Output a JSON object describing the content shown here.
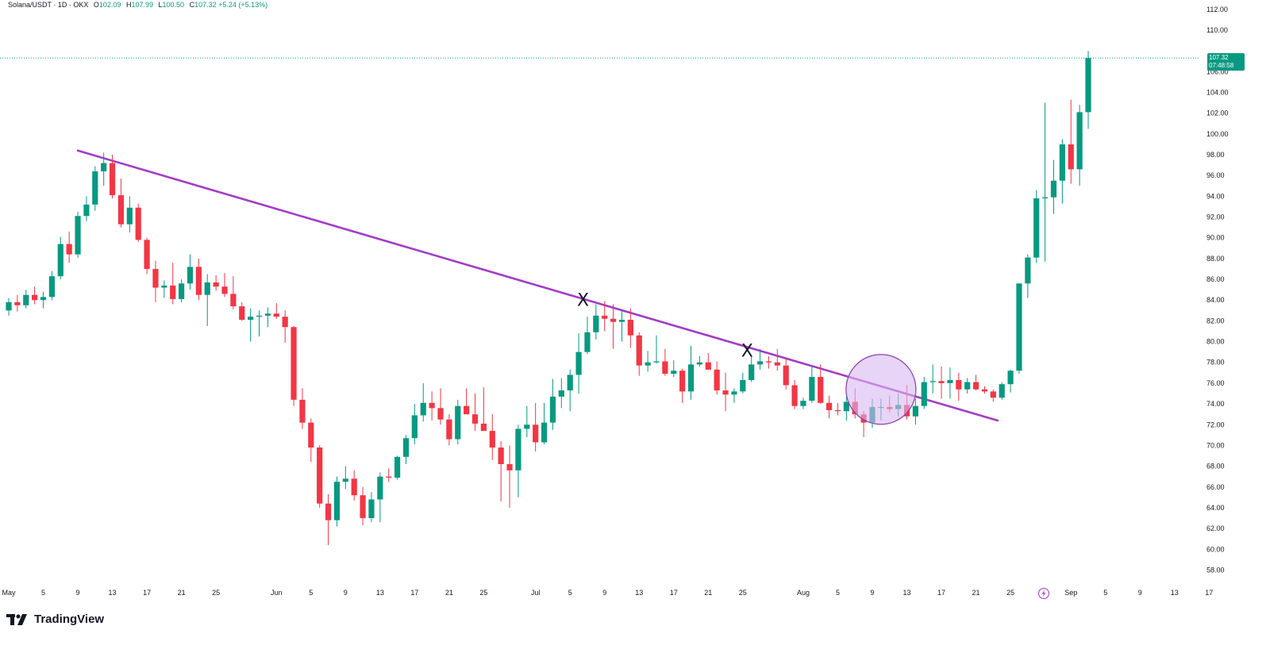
{
  "legend": {
    "title": "Solana/USDT · 1D · OKX",
    "open_label": "O",
    "open": "102.09",
    "high_label": "H",
    "high": "107.99",
    "low_label": "L",
    "low": "100.50",
    "close_label": "C",
    "close": "107.32",
    "change": "+5.24 (+5.13%)"
  },
  "price_tag": {
    "price": "107.32",
    "countdown": "07:48:58"
  },
  "brand": {
    "name": "TradingView"
  },
  "colors": {
    "up": "#089981",
    "down": "#f23645",
    "trendline": "#a23cc6",
    "circle_fill": "#d9b8f0",
    "circle_stroke": "#8e44ad"
  },
  "markers": {
    "mark1": "X",
    "mark2": "X"
  },
  "chart_data": {
    "type": "candlestick",
    "symbol": "Solana/USDT",
    "interval": "1D",
    "exchange": "OKX",
    "ylim": [
      57,
      113
    ],
    "y_ticks": [
      "58.00",
      "60.00",
      "62.00",
      "64.00",
      "66.00",
      "68.00",
      "70.00",
      "72.00",
      "74.00",
      "76.00",
      "78.00",
      "80.00",
      "82.00",
      "84.00",
      "86.00",
      "88.00",
      "90.00",
      "92.00",
      "94.00",
      "96.00",
      "98.00",
      "100.00",
      "102.00",
      "104.00",
      "106.00",
      "110.00",
      "112.00"
    ],
    "x_ticks": [
      {
        "label": "May",
        "day": 1
      },
      {
        "label": "5",
        "day": 5
      },
      {
        "label": "9",
        "day": 9
      },
      {
        "label": "13",
        "day": 13
      },
      {
        "label": "17",
        "day": 17
      },
      {
        "label": "21",
        "day": 21
      },
      {
        "label": "25",
        "day": 25
      },
      {
        "label": "Jun",
        "day": 32
      },
      {
        "label": "5",
        "day": 36
      },
      {
        "label": "9",
        "day": 40
      },
      {
        "label": "13",
        "day": 44
      },
      {
        "label": "17",
        "day": 48
      },
      {
        "label": "21",
        "day": 52
      },
      {
        "label": "25",
        "day": 56
      },
      {
        "label": "Jul",
        "day": 62
      },
      {
        "label": "5",
        "day": 66
      },
      {
        "label": "9",
        "day": 70
      },
      {
        "label": "13",
        "day": 74
      },
      {
        "label": "17",
        "day": 78
      },
      {
        "label": "21",
        "day": 82
      },
      {
        "label": "25",
        "day": 86
      },
      {
        "label": "Aug",
        "day": 93
      },
      {
        "label": "5",
        "day": 97
      },
      {
        "label": "9",
        "day": 101
      },
      {
        "label": "13",
        "day": 105
      },
      {
        "label": "17",
        "day": 109
      },
      {
        "label": "21",
        "day": 113
      },
      {
        "label": "25",
        "day": 117
      },
      {
        "label": "Sep",
        "day": 124
      },
      {
        "label": "5",
        "day": 128
      },
      {
        "label": "9",
        "day": 132
      },
      {
        "label": "13",
        "day": 136
      },
      {
        "label": "17",
        "day": 140
      }
    ],
    "candles_ohlc": [
      [
        83.0,
        84.2,
        82.5,
        83.8
      ],
      [
        83.8,
        84.5,
        82.9,
        83.5
      ],
      [
        83.5,
        85.0,
        83.2,
        84.5
      ],
      [
        84.5,
        85.3,
        83.6,
        84.0
      ],
      [
        84.0,
        84.8,
        83.2,
        84.3
      ],
      [
        84.3,
        86.8,
        84.0,
        86.3
      ],
      [
        86.3,
        90.1,
        86.0,
        89.4
      ],
      [
        89.4,
        90.6,
        87.6,
        88.4
      ],
      [
        88.4,
        92.5,
        88.1,
        92.1
      ],
      [
        92.1,
        94.0,
        91.6,
        93.2
      ],
      [
        93.2,
        96.9,
        92.6,
        96.4
      ],
      [
        96.4,
        98.2,
        95.0,
        97.2
      ],
      [
        97.2,
        98.0,
        93.8,
        94.1
      ],
      [
        94.1,
        95.7,
        91.0,
        91.3
      ],
      [
        91.3,
        94.0,
        90.5,
        92.9
      ],
      [
        92.9,
        93.3,
        89.6,
        89.8
      ],
      [
        89.8,
        90.0,
        86.5,
        87.0
      ],
      [
        87.0,
        87.8,
        83.8,
        85.2
      ],
      [
        85.2,
        85.9,
        84.2,
        85.4
      ],
      [
        85.4,
        87.6,
        83.6,
        84.1
      ],
      [
        84.1,
        86.0,
        83.8,
        85.6
      ],
      [
        85.6,
        88.4,
        85.0,
        87.2
      ],
      [
        87.2,
        88.0,
        84.0,
        84.5
      ],
      [
        84.5,
        86.5,
        81.5,
        85.7
      ],
      [
        85.7,
        86.4,
        84.9,
        85.3
      ],
      [
        85.3,
        86.6,
        84.3,
        84.6
      ],
      [
        84.6,
        86.3,
        83.1,
        83.4
      ],
      [
        83.4,
        83.8,
        82.0,
        82.1
      ],
      [
        82.1,
        83.2,
        80.0,
        82.4
      ],
      [
        82.4,
        83.0,
        80.5,
        82.5
      ],
      [
        82.5,
        83.3,
        81.4,
        82.7
      ],
      [
        82.7,
        83.7,
        82.2,
        82.4
      ],
      [
        82.4,
        83.0,
        79.9,
        81.4
      ],
      [
        81.4,
        81.5,
        73.8,
        74.4
      ],
      [
        74.4,
        75.5,
        71.6,
        72.2
      ],
      [
        72.2,
        72.6,
        68.4,
        69.8
      ],
      [
        69.8,
        70.0,
        64.0,
        64.4
      ],
      [
        64.4,
        65.3,
        60.4,
        62.8
      ],
      [
        62.8,
        67.0,
        62.2,
        66.5
      ],
      [
        66.5,
        68.0,
        65.8,
        66.8
      ],
      [
        66.8,
        67.6,
        64.7,
        65.2
      ],
      [
        65.2,
        66.0,
        62.3,
        63.0
      ],
      [
        63.0,
        65.5,
        62.6,
        64.8
      ],
      [
        64.8,
        67.4,
        62.6,
        67.0
      ],
      [
        67.0,
        67.8,
        66.5,
        66.9
      ],
      [
        66.9,
        69.0,
        66.7,
        68.9
      ],
      [
        68.9,
        71.0,
        68.2,
        70.7
      ],
      [
        70.7,
        74.0,
        70.1,
        72.9
      ],
      [
        72.9,
        76.0,
        72.3,
        74.1
      ],
      [
        74.1,
        75.2,
        72.4,
        73.6
      ],
      [
        73.6,
        75.5,
        72.0,
        72.5
      ],
      [
        72.5,
        73.0,
        70.0,
        70.6
      ],
      [
        70.6,
        74.4,
        70.1,
        73.8
      ],
      [
        73.8,
        75.5,
        73.0,
        73.0
      ],
      [
        73.0,
        75.0,
        71.4,
        72.1
      ],
      [
        72.1,
        75.6,
        71.6,
        71.4
      ],
      [
        71.4,
        73.0,
        68.6,
        69.8
      ],
      [
        69.8,
        70.4,
        64.6,
        68.2
      ],
      [
        68.2,
        70.0,
        64.0,
        67.6
      ],
      [
        67.6,
        72.0,
        65.0,
        71.6
      ],
      [
        71.6,
        73.8,
        70.8,
        72.0
      ],
      [
        72.0,
        74.1,
        69.4,
        70.3
      ],
      [
        70.3,
        74.1,
        70.1,
        72.2
      ],
      [
        72.2,
        76.4,
        71.5,
        74.7
      ],
      [
        74.7,
        76.5,
        73.6,
        75.3
      ],
      [
        75.3,
        77.3,
        73.3,
        76.8
      ],
      [
        76.8,
        80.8,
        75.0,
        79.0
      ],
      [
        79.0,
        82.4,
        78.8,
        80.9
      ],
      [
        80.9,
        83.6,
        80.2,
        82.5
      ],
      [
        82.5,
        83.9,
        81.0,
        82.2
      ],
      [
        82.2,
        83.6,
        79.3,
        81.9
      ],
      [
        81.9,
        83.0,
        80.0,
        82.1
      ],
      [
        82.1,
        83.2,
        79.4,
        80.6
      ],
      [
        80.6,
        80.9,
        76.7,
        77.7
      ],
      [
        77.7,
        79.1,
        77.1,
        78.0
      ],
      [
        78.0,
        80.6,
        77.9,
        78.1
      ],
      [
        78.1,
        79.3,
        76.7,
        76.9
      ],
      [
        76.9,
        78.2,
        76.6,
        77.2
      ],
      [
        77.2,
        77.4,
        74.1,
        75.2
      ],
      [
        75.2,
        79.6,
        74.4,
        77.8
      ],
      [
        77.8,
        78.6,
        77.6,
        78.0
      ],
      [
        78.0,
        78.9,
        77.4,
        77.3
      ],
      [
        77.3,
        78.1,
        74.9,
        75.3
      ],
      [
        75.3,
        77.0,
        73.3,
        74.9
      ],
      [
        74.9,
        75.5,
        74.1,
        75.2
      ],
      [
        75.2,
        77.0,
        75.0,
        76.3
      ],
      [
        76.3,
        78.6,
        76.1,
        77.8
      ],
      [
        77.8,
        79.3,
        77.3,
        78.1
      ],
      [
        78.1,
        78.6,
        77.4,
        78.0
      ],
      [
        78.0,
        79.3,
        77.2,
        77.7
      ],
      [
        77.7,
        78.4,
        75.4,
        75.8
      ],
      [
        75.8,
        76.3,
        73.5,
        73.8
      ],
      [
        73.8,
        74.6,
        73.5,
        74.3
      ],
      [
        74.3,
        77.7,
        74.1,
        76.6
      ],
      [
        76.6,
        77.8,
        74.0,
        74.1
      ],
      [
        74.1,
        74.8,
        72.6,
        73.4
      ],
      [
        73.4,
        74.1,
        72.9,
        73.3
      ],
      [
        73.3,
        74.7,
        72.4,
        74.2
      ],
      [
        74.2,
        75.5,
        72.6,
        73.0
      ],
      [
        73.0,
        73.3,
        70.8,
        72.2
      ],
      [
        72.2,
        74.5,
        71.7,
        73.7
      ],
      [
        73.7,
        74.5,
        72.4,
        73.7
      ],
      [
        73.7,
        74.8,
        73.2,
        73.5
      ],
      [
        73.5,
        75.0,
        72.8,
        73.9
      ],
      [
        73.9,
        75.8,
        72.5,
        72.8
      ],
      [
        72.8,
        74.5,
        72.0,
        73.8
      ],
      [
        73.8,
        76.6,
        73.5,
        76.1
      ],
      [
        76.1,
        77.8,
        75.0,
        76.2
      ],
      [
        76.2,
        77.6,
        74.5,
        76.0
      ],
      [
        76.0,
        77.5,
        74.5,
        76.3
      ],
      [
        76.3,
        77.0,
        74.3,
        75.4
      ],
      [
        75.4,
        76.5,
        75.0,
        76.1
      ],
      [
        76.1,
        76.8,
        75.3,
        75.4
      ],
      [
        75.4,
        75.7,
        75.0,
        75.2
      ],
      [
        75.2,
        75.4,
        74.2,
        74.6
      ],
      [
        74.6,
        76.1,
        74.4,
        75.9
      ],
      [
        75.9,
        77.3,
        75.1,
        77.2
      ],
      [
        77.2,
        85.6,
        76.9,
        85.6
      ],
      [
        85.6,
        88.4,
        84.2,
        88.1
      ],
      [
        88.1,
        94.6,
        87.6,
        93.8
      ],
      [
        93.8,
        103.0,
        87.7,
        93.9
      ],
      [
        93.9,
        97.5,
        92.3,
        95.5
      ],
      [
        95.5,
        99.5,
        93.3,
        99.0
      ],
      [
        99.0,
        103.3,
        95.2,
        96.6
      ],
      [
        96.6,
        102.8,
        95.0,
        102.1
      ],
      [
        102.1,
        107.99,
        100.5,
        107.32
      ]
    ],
    "trendline": {
      "from": {
        "day": 9,
        "price": 98.4
      },
      "to": {
        "day": 115.5,
        "price": 72.4
      }
    },
    "annotations": [
      {
        "text": "X",
        "day": 67.5,
        "price": 83.9
      },
      {
        "text": "X",
        "day": 86.5,
        "price": 79.0
      }
    ],
    "highlight_circle": {
      "day": 102,
      "price": 75.4
    },
    "last_price": 107.32
  }
}
